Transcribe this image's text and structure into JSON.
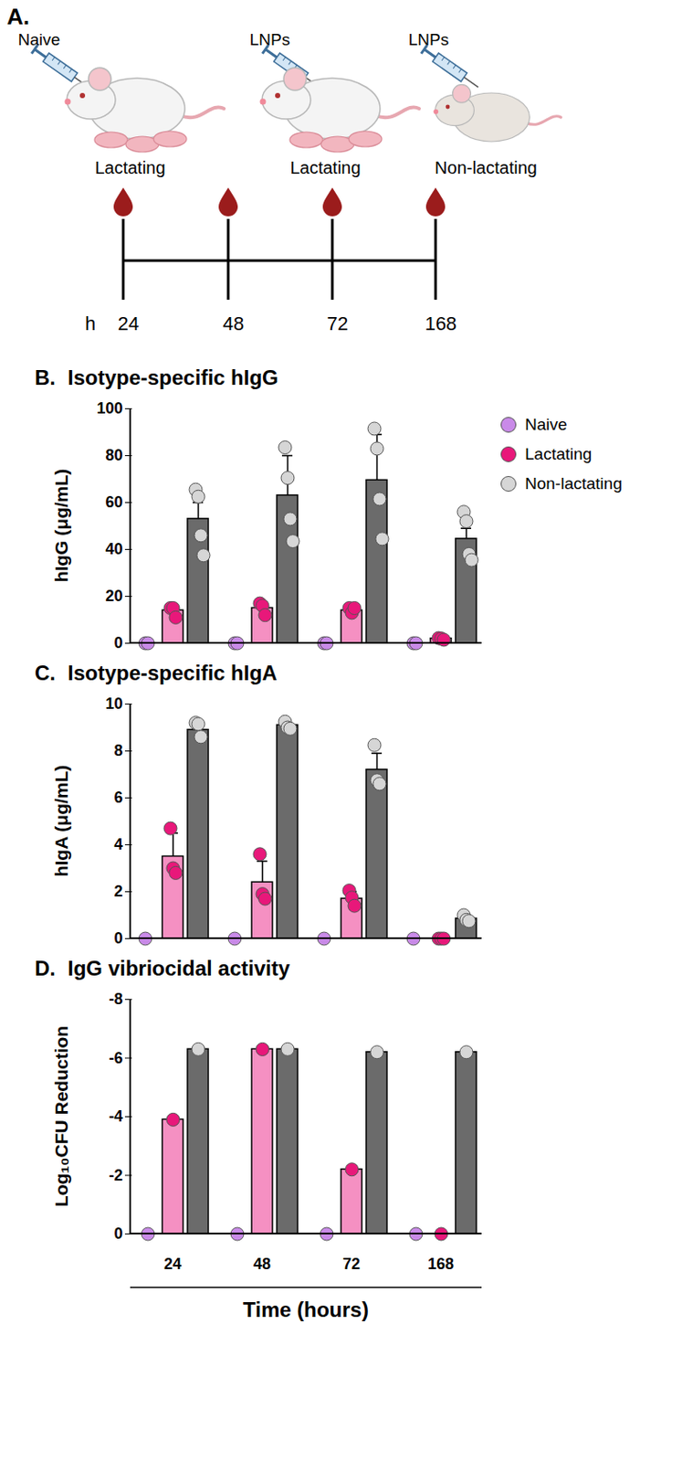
{
  "diagram": {
    "panel": "A.",
    "injections": [
      "Naive",
      "LNPs",
      "LNPs"
    ],
    "groups": [
      "Lactating",
      "Lactating",
      "Non-lactating"
    ],
    "timeline": {
      "unit": "h",
      "times": [
        24,
        48,
        72,
        168
      ]
    }
  },
  "chart_data": [
    {
      "type": "bar",
      "panel": "B.",
      "title": "Isotype-specific hIgG",
      "ylabel": "hIgG (μg/mL)",
      "categories": [
        "24",
        "48",
        "72",
        "168"
      ],
      "series": [
        {
          "name": "Naive",
          "color": "#c98ae8",
          "values": [
            0,
            0,
            0,
            0
          ],
          "error": [
            0,
            0,
            0,
            0
          ],
          "points": [
            [
              0,
              0
            ],
            [
              0,
              0
            ],
            [
              0,
              0
            ],
            [
              0,
              0
            ]
          ]
        },
        {
          "name": "Lactating",
          "color": "#e8187a",
          "values": [
            14,
            15,
            14,
            2
          ],
          "error": [
            2.5,
            2.5,
            1.2,
            0.3
          ],
          "points": [
            [
              15,
              15,
              11
            ],
            [
              17,
              16,
              12
            ],
            [
              15,
              13,
              15
            ],
            [
              2.2,
              2,
              1.5
            ]
          ]
        },
        {
          "name": "Non-lactating",
          "color": "#d6d6d6",
          "values": [
            53,
            63,
            69.5,
            44.5
          ],
          "error": [
            7,
            17,
            19.5,
            4.5
          ],
          "points": [
            [
              65.5,
              62.5,
              46,
              37.5
            ],
            [
              83.5,
              70.5,
              53,
              43.5
            ],
            [
              91.5,
              83,
              61.5,
              44.5
            ],
            [
              56,
              52,
              38,
              35.5
            ]
          ]
        }
      ],
      "ylim": [
        0,
        100
      ],
      "yticks": [
        0,
        20,
        40,
        60,
        80,
        100
      ],
      "legend": "right",
      "tick_labels": "y"
    },
    {
      "type": "bar",
      "panel": "C.",
      "title": "Isotype-specific hIgA",
      "ylabel": "hIgA (μg/mL)",
      "categories": [
        "24",
        "48",
        "72",
        "168"
      ],
      "series": [
        {
          "name": "Naive",
          "color": "#c98ae8",
          "values": [
            0,
            0,
            0,
            0
          ],
          "error": [
            0,
            0,
            0,
            0
          ],
          "points": [
            [
              0
            ],
            [
              0
            ],
            [
              0
            ],
            [
              0
            ]
          ]
        },
        {
          "name": "Lactating",
          "color": "#e8187a",
          "values": [
            3.5,
            2.4,
            1.7,
            0
          ],
          "error": [
            1.0,
            0.9,
            0.3,
            0
          ],
          "points": [
            [
              4.7,
              3.0,
              2.8
            ],
            [
              3.6,
              1.9,
              1.7
            ],
            [
              2.05,
              1.75,
              1.4
            ],
            [
              0,
              0,
              0
            ]
          ]
        },
        {
          "name": "Non-lactating",
          "color": "#d6d6d6",
          "values": [
            8.9,
            9.1,
            7.2,
            0.85
          ],
          "error": [
            0.3,
            0.1,
            0.7,
            0.15
          ],
          "points": [
            [
              9.2,
              9.15,
              8.6
            ],
            [
              9.25,
              9.0,
              8.95
            ],
            [
              8.25,
              6.75,
              6.6
            ],
            [
              1.0,
              0.8,
              0.75
            ]
          ]
        }
      ],
      "ylim": [
        0,
        10
      ],
      "yticks": [
        0,
        2,
        4,
        6,
        8,
        10
      ],
      "tick_labels": "y"
    },
    {
      "type": "bar",
      "panel": "D.",
      "title": "IgG vibriocidal activity",
      "ylabel": "Log₁₀CFU Reduction",
      "xlabel": "Time (hours)",
      "categories": [
        "24",
        "48",
        "72",
        "168"
      ],
      "series": [
        {
          "name": "Naive",
          "color": "#c98ae8",
          "values": [
            0,
            0,
            0,
            0
          ]
        },
        {
          "name": "Lactating",
          "color": "#e8187a",
          "values": [
            -3.9,
            -6.3,
            -2.2,
            0
          ]
        },
        {
          "name": "Non-lactating",
          "color": "#d6d6d6",
          "values": [
            -6.3,
            -6.3,
            -6.2,
            -6.2
          ]
        }
      ],
      "ylim": [
        0,
        -8
      ],
      "yticks": [
        0,
        -2,
        -4,
        -6,
        -8
      ]
    }
  ]
}
